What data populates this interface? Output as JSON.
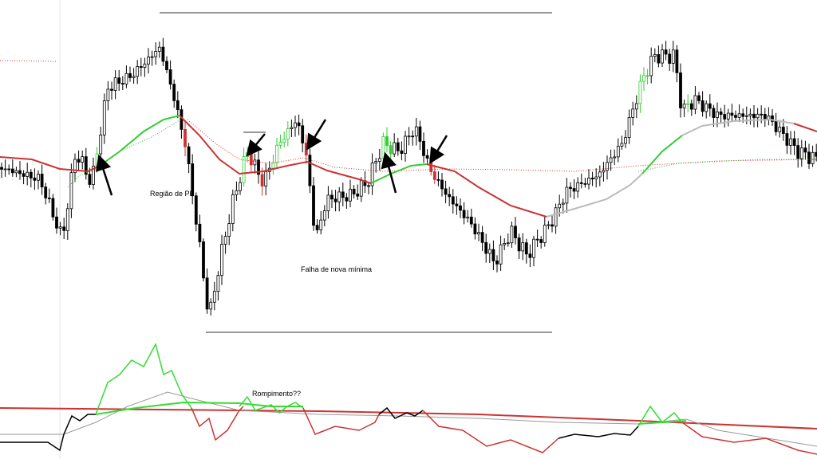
{
  "annotations": {
    "pullback": "Região de PB",
    "failure": "Falha de nova mínima",
    "breakout": "Rompimento??"
  }
}
